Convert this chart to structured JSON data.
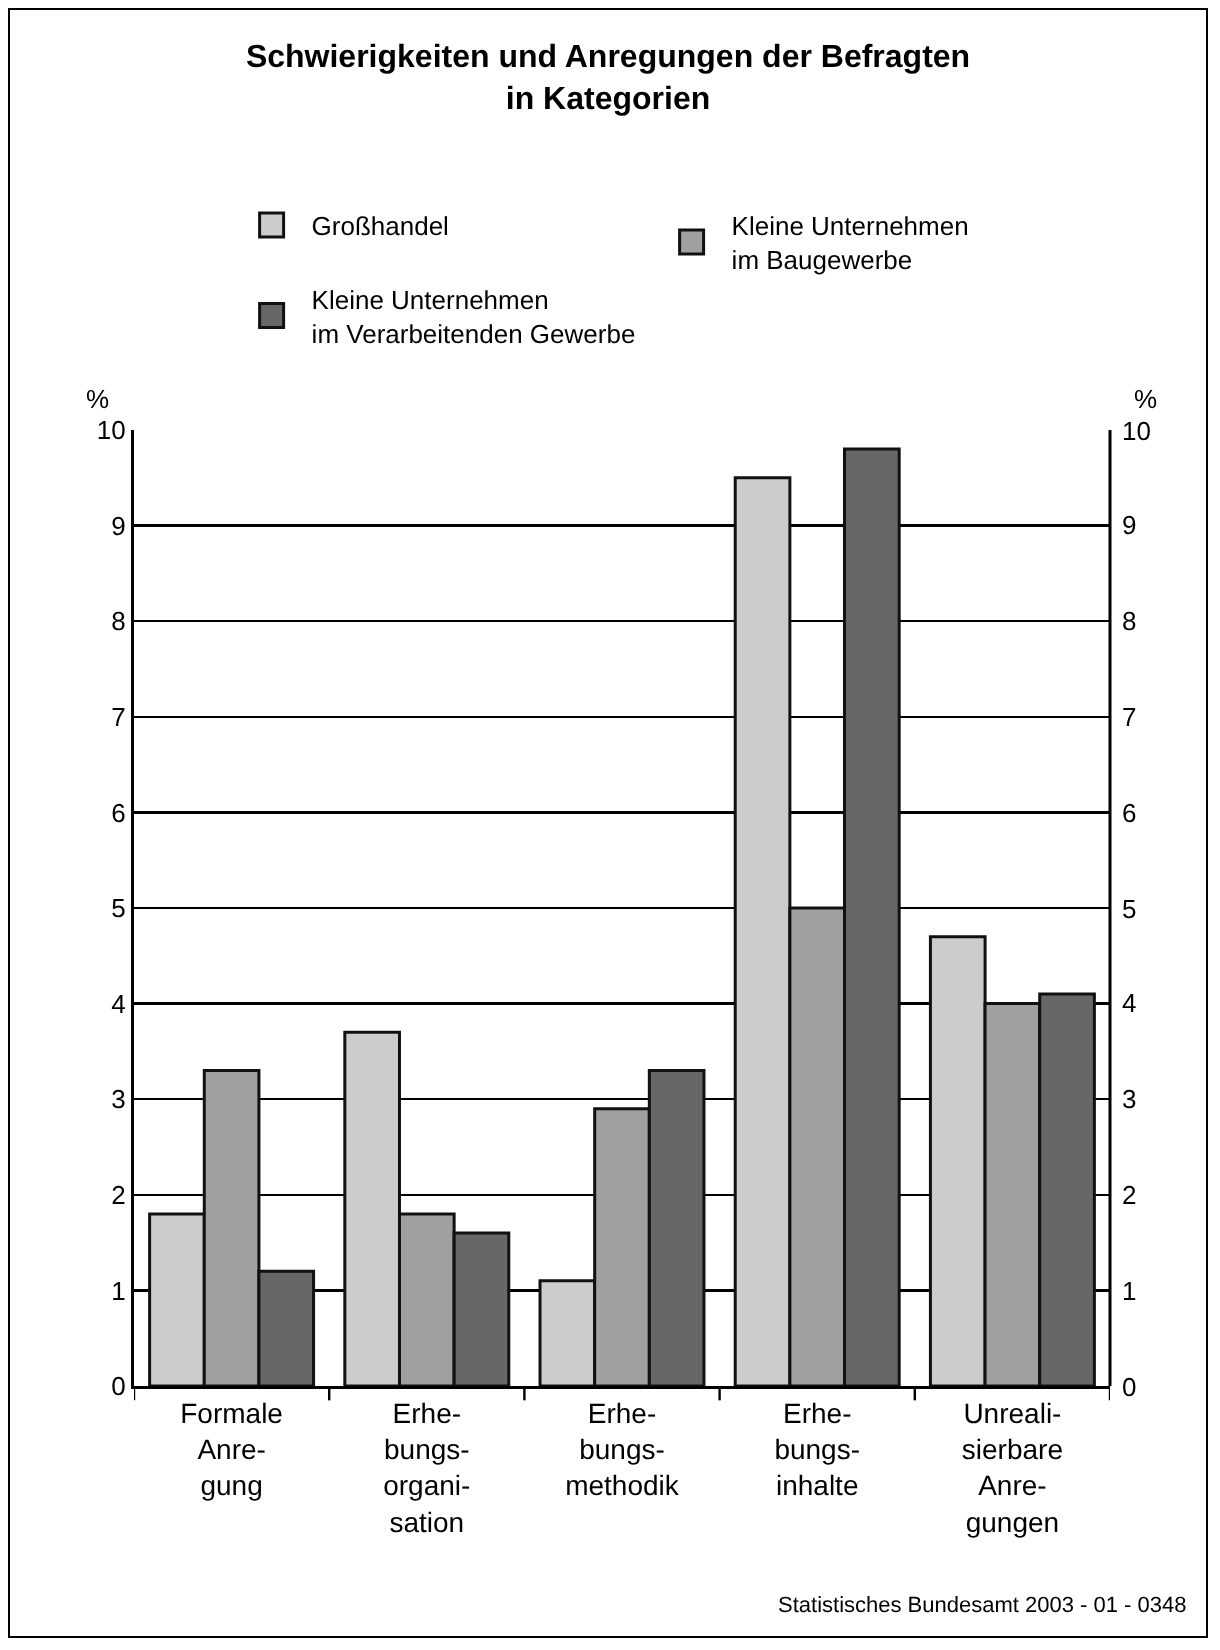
{
  "chart_data": {
    "type": "bar",
    "title": "Schwierigkeiten und Anregungen der Befragten\nin Kategorien",
    "ylabel": "%",
    "y2label": "%",
    "categories": [
      "Formale\nAnre-\ngung",
      "Erhe-\nbungs-\norgani-\nsation",
      "Erhe-\nbungs-\nmethodik",
      "Erhe-\nbungs-\ninhalte",
      "Unreali-\nsierbare\nAnre-\ngungen"
    ],
    "series": [
      {
        "name": "Großhandel",
        "color": "#cccccc",
        "values": [
          1.8,
          3.7,
          1.1,
          9.5,
          4.7
        ]
      },
      {
        "name": "Kleine Unternehmen\nim Baugewerbe",
        "color": "#a0a0a0",
        "values": [
          3.3,
          1.8,
          2.9,
          5.0,
          4.0
        ]
      },
      {
        "name": "Kleine Unternehmen\nim Verarbeitenden Gewerbe",
        "color": "#676767",
        "values": [
          1.2,
          1.6,
          3.3,
          9.8,
          4.1
        ]
      }
    ],
    "ylim": [
      0,
      10
    ],
    "yticks": [
      0,
      1,
      2,
      3,
      4,
      5,
      6,
      7,
      8,
      9,
      10
    ],
    "y2lim": [
      0,
      10
    ],
    "y2ticks": [
      0,
      1,
      2,
      3,
      4,
      5,
      6,
      7,
      8,
      9,
      10
    ],
    "grid": "y",
    "legend": "top",
    "annotations": [
      "Statistisches Bundesamt 2003 - 01 - 0348"
    ]
  }
}
